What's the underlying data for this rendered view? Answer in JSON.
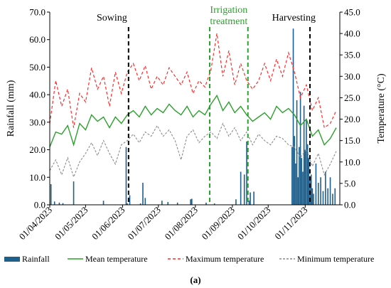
{
  "chart_data": {
    "type": "bar+line",
    "caption": "(a)",
    "ylabel_left": "Rainfall (mm)",
    "ylabel_right": "Temperature (°C)",
    "ylim_left": [
      0,
      70
    ],
    "ylim_right": [
      0,
      45
    ],
    "yticks_left": [
      "0.0",
      "10.0",
      "20.0",
      "30.0",
      "40.0",
      "50.0",
      "60.0",
      "70.0"
    ],
    "yticks_right": [
      "0.0",
      "5.0",
      "10.0",
      "15.0",
      "20.0",
      "25.0",
      "30.0",
      "35.0",
      "40.0",
      "45.0"
    ],
    "x_range": [
      "2023-04-01",
      "2023-11-30"
    ],
    "xticks": [
      "01/04/2023",
      "01/05/2023",
      "01/06/2023",
      "01/07/2023",
      "01/08/2023",
      "01/09/2023",
      "01/10/2023",
      "01/11/2023"
    ],
    "grid": false,
    "legend_position": "bottom",
    "colors": {
      "rainfall": "#1f5f8b",
      "mean": "#2ca02c",
      "max": "#ff2a2a",
      "min": "#8c8c8c",
      "sowing": "#000000",
      "irrigation": "#2ca02c",
      "harvesting": "#000000"
    },
    "annotations": [
      {
        "text": "Sowing",
        "x": "2023-06-06",
        "style": "black-dashed"
      },
      {
        "text": "Irrigation",
        "text2": "treatment",
        "x": "2023-08-13",
        "x_end": "2023-09-14",
        "style": "green-dashed"
      },
      {
        "text": "Harvesting",
        "x": "2023-11-05",
        "style": "black-dashed"
      }
    ],
    "series": [
      {
        "name": "Rainfall",
        "axis": "left",
        "kind": "bar",
        "x": [
          "2023-04-02",
          "2023-04-05",
          "2023-04-09",
          "2023-04-12",
          "2023-04-21",
          "2023-05-16",
          "2023-06-04",
          "2023-06-05",
          "2023-06-07",
          "2023-06-16",
          "2023-06-18",
          "2023-06-20",
          "2023-07-04",
          "2023-07-09",
          "2023-07-17",
          "2023-07-28",
          "2023-07-29",
          "2023-08-10",
          "2023-08-17",
          "2023-09-04",
          "2023-09-08",
          "2023-09-11",
          "2023-09-13",
          "2023-09-15",
          "2023-09-16",
          "2023-09-19",
          "2023-10-21",
          "2023-10-22",
          "2023-10-23",
          "2023-10-24",
          "2023-10-25",
          "2023-10-26",
          "2023-10-27",
          "2023-10-28",
          "2023-10-29",
          "2023-10-30",
          "2023-10-31",
          "2023-11-01",
          "2023-11-02",
          "2023-11-03",
          "2023-11-04",
          "2023-11-05",
          "2023-11-06",
          "2023-11-07",
          "2023-11-08",
          "2023-11-10",
          "2023-11-12",
          "2023-11-14",
          "2023-11-16",
          "2023-11-18",
          "2023-11-20",
          "2023-11-22",
          "2023-11-24",
          "2023-11-26"
        ],
        "values": [
          7.5,
          1.2,
          0.8,
          0.6,
          8.5,
          1.5,
          21.0,
          0.5,
          3.5,
          0.5,
          8.0,
          2.5,
          1.5,
          1.0,
          0.8,
          2.0,
          2.2,
          0.8,
          0.5,
          2.0,
          12.0,
          11.0,
          23.0,
          1.5,
          4.5,
          4.8,
          21.0,
          64.0,
          25.0,
          15.0,
          38.0,
          10.0,
          21.0,
          41.0,
          17.0,
          12.0,
          36.0,
          20.0,
          31.0,
          22.0,
          17.0,
          9.0,
          11.0,
          6.0,
          4.0,
          15.0,
          8.0,
          10.0,
          5.0,
          12.0,
          6.0,
          10.0,
          4.0,
          6.0
        ]
      },
      {
        "name": "Mean temperature",
        "axis": "right",
        "kind": "line",
        "x": [
          "2023-04-01",
          "2023-04-06",
          "2023-04-11",
          "2023-04-16",
          "2023-04-21",
          "2023-04-26",
          "2023-05-01",
          "2023-05-06",
          "2023-05-11",
          "2023-05-16",
          "2023-05-21",
          "2023-05-26",
          "2023-05-31",
          "2023-06-05",
          "2023-06-10",
          "2023-06-15",
          "2023-06-20",
          "2023-06-25",
          "2023-06-30",
          "2023-07-05",
          "2023-07-10",
          "2023-07-15",
          "2023-07-20",
          "2023-07-25",
          "2023-07-30",
          "2023-08-04",
          "2023-08-09",
          "2023-08-14",
          "2023-08-19",
          "2023-08-24",
          "2023-08-29",
          "2023-09-03",
          "2023-09-08",
          "2023-09-13",
          "2023-09-18",
          "2023-09-23",
          "2023-09-28",
          "2023-10-03",
          "2023-10-08",
          "2023-10-13",
          "2023-10-18",
          "2023-10-23",
          "2023-10-28",
          "2023-11-02",
          "2023-11-07",
          "2023-11-12",
          "2023-11-17",
          "2023-11-22",
          "2023-11-27"
        ],
        "values": [
          13.5,
          17.0,
          16.5,
          18.5,
          14.0,
          19.0,
          17.5,
          21.0,
          19.5,
          20.5,
          18.0,
          20.5,
          19.0,
          21.0,
          22.0,
          20.5,
          23.0,
          21.0,
          22.5,
          21.5,
          23.5,
          22.0,
          21.0,
          23.0,
          20.5,
          22.0,
          21.0,
          23.5,
          25.5,
          22.0,
          24.0,
          21.5,
          23.0,
          21.0,
          19.5,
          20.5,
          21.5,
          20.0,
          23.0,
          21.5,
          22.5,
          21.0,
          18.5,
          20.0,
          16.0,
          17.5,
          14.0,
          15.5,
          18.0
        ]
      },
      {
        "name": "Maximum temperature",
        "axis": "right",
        "kind": "line",
        "x": [
          "2023-04-01",
          "2023-04-06",
          "2023-04-11",
          "2023-04-16",
          "2023-04-21",
          "2023-04-26",
          "2023-05-01",
          "2023-05-06",
          "2023-05-11",
          "2023-05-16",
          "2023-05-21",
          "2023-05-26",
          "2023-05-31",
          "2023-06-05",
          "2023-06-10",
          "2023-06-15",
          "2023-06-20",
          "2023-06-25",
          "2023-06-30",
          "2023-07-05",
          "2023-07-10",
          "2023-07-15",
          "2023-07-20",
          "2023-07-25",
          "2023-07-30",
          "2023-08-04",
          "2023-08-09",
          "2023-08-14",
          "2023-08-19",
          "2023-08-24",
          "2023-08-29",
          "2023-09-03",
          "2023-09-08",
          "2023-09-13",
          "2023-09-18",
          "2023-09-23",
          "2023-09-28",
          "2023-10-03",
          "2023-10-08",
          "2023-10-13",
          "2023-10-18",
          "2023-10-23",
          "2023-10-28",
          "2023-11-02",
          "2023-11-07",
          "2023-11-12",
          "2023-11-17",
          "2023-11-22",
          "2023-11-27"
        ],
        "values": [
          19.0,
          29.0,
          23.0,
          27.0,
          18.0,
          26.0,
          24.0,
          32.0,
          27.0,
          30.0,
          23.0,
          31.0,
          26.0,
          31.0,
          33.0,
          29.0,
          32.5,
          27.0,
          30.0,
          28.0,
          32.0,
          30.0,
          28.0,
          31.0,
          26.0,
          29.0,
          27.5,
          31.5,
          40.0,
          30.0,
          36.0,
          28.0,
          33.0,
          29.0,
          27.0,
          29.0,
          33.0,
          29.0,
          34.0,
          30.0,
          35.5,
          31.0,
          25.0,
          28.0,
          22.0,
          25.0,
          18.0,
          19.0,
          22.0
        ]
      },
      {
        "name": "Minimum temperature",
        "axis": "right",
        "kind": "line",
        "x": [
          "2023-04-01",
          "2023-04-06",
          "2023-04-11",
          "2023-04-16",
          "2023-04-21",
          "2023-04-26",
          "2023-05-01",
          "2023-05-06",
          "2023-05-11",
          "2023-05-16",
          "2023-05-21",
          "2023-05-26",
          "2023-05-31",
          "2023-06-05",
          "2023-06-10",
          "2023-06-15",
          "2023-06-20",
          "2023-06-25",
          "2023-06-30",
          "2023-07-05",
          "2023-07-10",
          "2023-07-15",
          "2023-07-20",
          "2023-07-25",
          "2023-07-30",
          "2023-08-04",
          "2023-08-09",
          "2023-08-14",
          "2023-08-19",
          "2023-08-24",
          "2023-08-29",
          "2023-09-03",
          "2023-09-08",
          "2023-09-13",
          "2023-09-18",
          "2023-09-23",
          "2023-09-28",
          "2023-10-03",
          "2023-10-08",
          "2023-10-13",
          "2023-10-18",
          "2023-10-23",
          "2023-10-28",
          "2023-11-02",
          "2023-11-07",
          "2023-11-12",
          "2023-11-17",
          "2023-11-22",
          "2023-11-27"
        ],
        "values": [
          8.0,
          10.5,
          7.0,
          11.0,
          6.5,
          10.0,
          12.0,
          14.5,
          11.5,
          15.0,
          12.0,
          9.5,
          14.0,
          15.0,
          16.5,
          14.5,
          17.0,
          16.0,
          18.5,
          16.0,
          17.5,
          15.0,
          10.5,
          16.0,
          17.5,
          14.5,
          16.0,
          17.0,
          15.5,
          19.0,
          16.0,
          18.0,
          15.0,
          17.0,
          14.0,
          16.5,
          15.0,
          14.0,
          16.0,
          15.5,
          14.0,
          13.5,
          11.0,
          13.0,
          9.0,
          12.0,
          7.0,
          9.5,
          12.5
        ]
      }
    ]
  }
}
